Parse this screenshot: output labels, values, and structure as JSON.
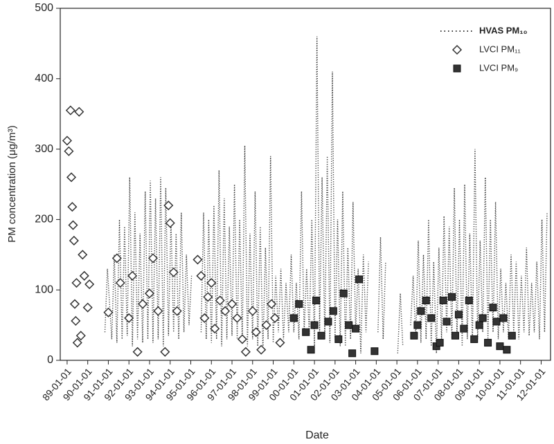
{
  "chart_data": {
    "type": "line",
    "x_label": "Date",
    "y_label": "PM concentration (μg/m³)",
    "xlim": [
      "88-09-01",
      "12-06-15"
    ],
    "xticks": [
      "89-01-01",
      "90-01-01",
      "91-01-01",
      "92-01-01",
      "93-01-01",
      "94-01-01",
      "95-01-01",
      "96-01-01",
      "97-01-01",
      "98-01-01",
      "99-01-01",
      "00-01-01",
      "01-01-01",
      "02-01-01",
      "03-01-01",
      "04-01-01",
      "05-01-01",
      "06-01-01",
      "07-01-01",
      "08-01-01",
      "09-01-01",
      "10-01-01",
      "11-01-01",
      "12-01-01"
    ],
    "ylim": [
      0,
      500
    ],
    "yticks": [
      0,
      100,
      200,
      300,
      400,
      500
    ],
    "grid": false,
    "legend": "upper right",
    "series": [
      {
        "name": "HVAS PM₁₀",
        "color": "#333333",
        "style": "dotted",
        "marker": "none",
        "x": [
          "90-11-01",
          "90-12-15",
          "91-03-01",
          "91-04-15",
          "91-06-01",
          "91-07-15",
          "91-09-01",
          "91-10-15",
          "91-12-01",
          "92-01-15",
          "92-03-01",
          "92-04-15",
          "92-06-01",
          "92-07-15",
          "92-09-01",
          "92-10-15",
          "92-12-01",
          "93-01-15",
          "93-03-01",
          "93-04-15",
          "93-06-01",
          "93-07-15",
          "93-09-01",
          "93-10-15",
          "93-12-01",
          "94-01-15",
          "94-03-01",
          "94-04-15",
          "94-06-01",
          "94-07-15",
          "94-09-01",
          "94-10-15",
          "94-12-01",
          "95-01-15",
          "95-02-01",
          "95-07-01",
          "95-08-15",
          "95-10-01",
          "95-11-15",
          "96-01-01",
          "96-02-15",
          "96-04-01",
          "96-05-15",
          "96-07-01",
          "96-08-15",
          "96-10-01",
          "96-11-15",
          "97-01-01",
          "97-02-15",
          "97-04-01",
          "97-05-15",
          "97-07-01",
          "97-08-15",
          "97-10-01",
          "97-11-15",
          "98-01-01",
          "98-02-15",
          "98-04-01",
          "98-05-15",
          "98-07-01",
          "98-08-15",
          "98-10-01",
          "98-11-15",
          "99-01-01",
          "99-02-15",
          "99-04-01",
          "99-05-15",
          "99-07-01",
          "99-08-15",
          "99-10-01",
          "99-11-15",
          "00-01-01",
          "00-02-15",
          "00-04-01",
          "00-05-15",
          "00-07-01",
          "00-08-15",
          "00-10-01",
          "00-11-15",
          "01-01-01",
          "01-02-15",
          "01-04-01",
          "01-05-15",
          "01-07-01",
          "01-08-15",
          "01-10-01",
          "01-11-15",
          "02-01-01",
          "02-02-15",
          "02-04-01",
          "02-05-15",
          "02-07-01",
          "02-08-15",
          "02-10-01",
          "02-11-15",
          "03-01-01",
          "03-02-15",
          "03-04-01",
          "03-05-15",
          "03-07-01",
          "03-08-15",
          "03-10-01",
          "04-02-01",
          "04-03-15",
          "04-05-01",
          "04-06-15",
          "04-08-01",
          "05-01-15",
          "05-03-01",
          "05-04-15",
          "05-06-01",
          "05-09-01",
          "05-10-15",
          "05-12-01",
          "06-01-15",
          "06-03-01",
          "06-04-15",
          "06-06-01",
          "06-07-15",
          "06-09-01",
          "06-10-15",
          "06-12-01",
          "07-01-15",
          "07-03-01",
          "07-04-15",
          "07-06-01",
          "07-07-15",
          "07-09-01",
          "07-10-15",
          "07-12-01",
          "08-01-15",
          "08-03-01",
          "08-04-15",
          "08-06-01",
          "08-07-15",
          "08-09-01",
          "08-10-15",
          "08-12-01",
          "09-01-15",
          "09-03-01",
          "09-04-15",
          "09-06-01",
          "09-07-15",
          "09-09-01",
          "09-10-15",
          "09-12-01",
          "10-01-15",
          "10-03-01",
          "10-04-15",
          "10-06-01",
          "10-07-15",
          "10-09-01",
          "10-10-15",
          "10-12-01",
          "11-01-15",
          "11-03-01",
          "11-04-15",
          "11-06-01",
          "11-07-15",
          "11-09-01",
          "11-10-15",
          "11-12-01",
          "12-01-15",
          "12-03-01",
          "12-04-15"
        ],
        "values": [
          40,
          130,
          30,
          150,
          25,
          200,
          30,
          190,
          35,
          260,
          20,
          210,
          30,
          180,
          25,
          240,
          30,
          255,
          25,
          230,
          30,
          260,
          20,
          245,
          35,
          200,
          40,
          180,
          30,
          210,
          40,
          150,
          50,
          120,
          null,
          40,
          210,
          30,
          200,
          25,
          220,
          30,
          270,
          20,
          230,
          30,
          190,
          35,
          250,
          30,
          200,
          25,
          305,
          20,
          180,
          30,
          240,
          20,
          190,
          15,
          160,
          30,
          290,
          25,
          120,
          40,
          130,
          30,
          110,
          40,
          150,
          40,
          110,
          30,
          240,
          40,
          130,
          35,
          200,
          20,
          460,
          40,
          260,
          30,
          290,
          25,
          410,
          30,
          200,
          20,
          240,
          20,
          160,
          30,
          225,
          40,
          130,
          10,
          150,
          40,
          140,
          null,
          40,
          175,
          30,
          140,
          null,
          10,
          95,
          20,
          null,
          50,
          120,
          30,
          170,
          25,
          150,
          30,
          200,
          20,
          140,
          10,
          160,
          30,
          205,
          40,
          190,
          30,
          245,
          30,
          200,
          20,
          250,
          30,
          180,
          25,
          300,
          30,
          170,
          40,
          260,
          30,
          200,
          40,
          225,
          30,
          130,
          40,
          110,
          30,
          150,
          40,
          140,
          30,
          120,
          40,
          160,
          35,
          110,
          40,
          140,
          30,
          200,
          40,
          210
        ]
      },
      {
        "name": "LVCI PM₁₁",
        "color": "#333333",
        "style": "none",
        "marker": "diamond",
        "x": [
          "89-01-01",
          "89-02-01",
          "89-03-01",
          "89-03-15",
          "89-04-01",
          "89-04-15",
          "89-05-01",
          "89-05-15",
          "89-06-01",
          "89-06-15",
          "89-07-01",
          "89-08-01",
          "89-09-01",
          "89-10-01",
          "89-11-01",
          "90-01-01",
          "90-02-01",
          "91-01-01",
          "91-06-01",
          "91-08-01",
          "92-01-01",
          "92-03-01",
          "92-06-01",
          "92-09-01",
          "93-01-01",
          "93-03-01",
          "93-06-01",
          "93-10-01",
          "93-12-01",
          "94-01-01",
          "94-03-01",
          "94-05-01",
          "95-05-01",
          "95-07-01",
          "95-09-01",
          "95-11-01",
          "96-01-01",
          "96-03-01",
          "96-06-01",
          "96-09-01",
          "97-01-01",
          "97-04-01",
          "97-07-01",
          "97-09-01",
          "98-01-01",
          "98-03-01",
          "98-06-01",
          "98-09-01",
          "98-12-01",
          "99-02-01",
          "99-05-01"
        ],
        "values": [
          312,
          297,
          355,
          260,
          218,
          192,
          170,
          80,
          56,
          110,
          25,
          353,
          35,
          150,
          120,
          75,
          108,
          68,
          145,
          110,
          60,
          120,
          12,
          80,
          95,
          145,
          70,
          12,
          220,
          195,
          125,
          70,
          143,
          120,
          60,
          90,
          110,
          45,
          85,
          70,
          80,
          60,
          30,
          12,
          70,
          40,
          15,
          50,
          80,
          60,
          25
        ]
      },
      {
        "name": "LVCI PM₉",
        "color": "#333333",
        "style": "none",
        "marker": "square",
        "x": [
          "00-01-01",
          "00-04-01",
          "00-08-01",
          "00-11-01",
          "01-01-01",
          "01-02-01",
          "01-05-01",
          "01-09-01",
          "01-12-01",
          "02-03-01",
          "02-06-01",
          "02-09-01",
          "02-11-01",
          "03-01-01",
          "03-03-01",
          "03-12-01",
          "05-11-01",
          "06-01-01",
          "06-03-01",
          "06-06-01",
          "06-09-01",
          "06-12-01",
          "07-02-01",
          "07-04-01",
          "07-06-01",
          "07-09-01",
          "07-11-01",
          "08-01-01",
          "08-04-01",
          "08-07-01",
          "08-10-01",
          "09-01-01",
          "09-03-01",
          "09-06-01",
          "09-09-01",
          "09-11-01",
          "10-01-01",
          "10-03-01",
          "10-05-01",
          "10-08-01"
        ],
        "values": [
          60,
          80,
          40,
          15,
          50,
          85,
          35,
          55,
          70,
          30,
          95,
          50,
          10,
          45,
          115,
          13,
          35,
          50,
          70,
          85,
          60,
          20,
          25,
          85,
          55,
          90,
          35,
          65,
          45,
          85,
          30,
          50,
          60,
          25,
          75,
          55,
          20,
          60,
          15,
          35
        ]
      }
    ]
  }
}
